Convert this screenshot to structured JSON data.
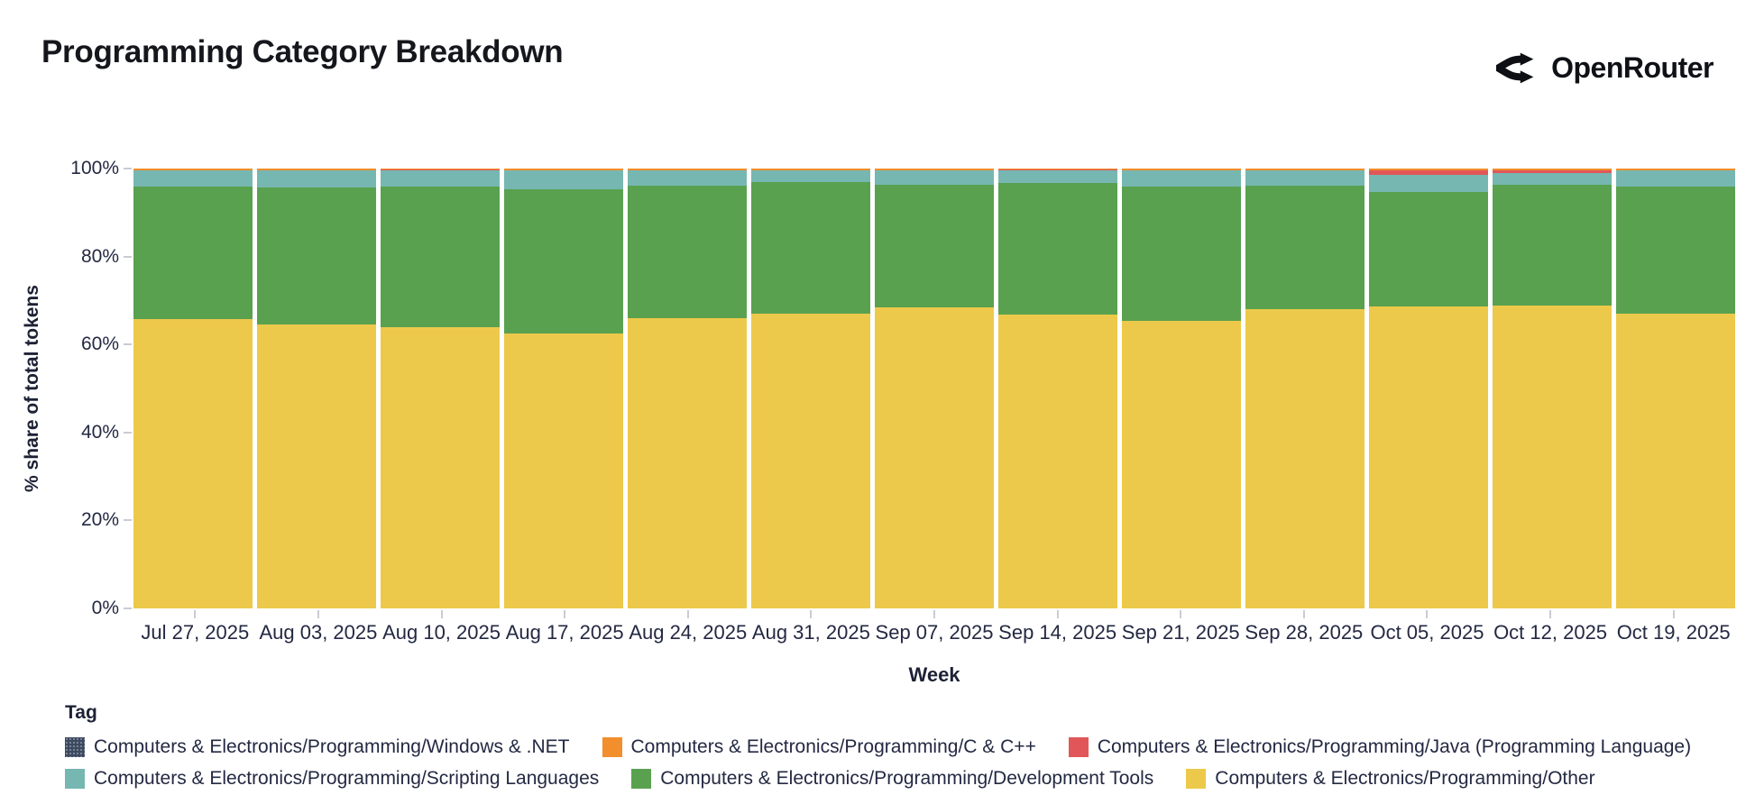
{
  "header": {
    "title": "Programming Category Breakdown",
    "brand": "OpenRouter"
  },
  "chart_data": {
    "type": "bar",
    "variant": "stacked-normalized",
    "title": "Programming Category Breakdown",
    "xlabel": "Week",
    "ylabel": "% share of total tokens",
    "ylim": [
      0,
      100
    ],
    "y_ticks": [
      {
        "value": 0,
        "label": "0%"
      },
      {
        "value": 20,
        "label": "20%"
      },
      {
        "value": 40,
        "label": "40%"
      },
      {
        "value": 60,
        "label": "60%"
      },
      {
        "value": 80,
        "label": "80%"
      },
      {
        "value": 100,
        "label": "100%"
      }
    ],
    "grid": false,
    "legend_position": "bottom",
    "categories": [
      "Jul 27, 2025",
      "Aug 03, 2025",
      "Aug 10, 2025",
      "Aug 17, 2025",
      "Aug 24, 2025",
      "Aug 31, 2025",
      "Sep 07, 2025",
      "Sep 14, 2025",
      "Sep 21, 2025",
      "Sep 28, 2025",
      "Oct 05, 2025",
      "Oct 12, 2025",
      "Oct 19, 2025"
    ],
    "stack_order": "bottom-to-top",
    "series": [
      {
        "key": "other",
        "name": "Computers & Electronics/Programming/Other",
        "color": "#EDC94B",
        "values": [
          65.8,
          64.6,
          64.0,
          62.5,
          65.9,
          67.1,
          68.5,
          66.9,
          65.4,
          68.1,
          68.7,
          68.9,
          67.1
        ]
      },
      {
        "key": "development-tools",
        "name": "Computers & Electronics/Programming/Development Tools",
        "color": "#59A14F",
        "values": [
          30.1,
          31.1,
          31.9,
          32.7,
          30.2,
          29.8,
          27.8,
          29.8,
          30.5,
          28.0,
          25.9,
          27.4,
          28.8
        ]
      },
      {
        "key": "scripting-languages",
        "name": "Computers & Electronics/Programming/Scripting Languages",
        "color": "#76B7B2",
        "values": [
          3.75,
          3.95,
          3.75,
          4.45,
          3.55,
          2.75,
          3.35,
          2.95,
          3.75,
          3.55,
          4.05,
          2.65,
          3.75
        ]
      },
      {
        "key": "java",
        "name": "Computers & Electronics/Programming/Java (Programming Language)",
        "color": "#E15759",
        "values": [
          0.05,
          0.05,
          0.05,
          0.05,
          0.05,
          0.05,
          0.05,
          0.05,
          0.05,
          0.05,
          1.0,
          0.7,
          0.05
        ]
      },
      {
        "key": "c-cpp",
        "name": "Computers & Electronics/Programming/C & C++",
        "color": "#F28E2B",
        "values": [
          0.25,
          0.25,
          0.25,
          0.25,
          0.25,
          0.25,
          0.25,
          0.25,
          0.25,
          0.25,
          0.3,
          0.3,
          0.25
        ]
      },
      {
        "key": "windows-net",
        "name": "Computers & Electronics/Programming/Windows & .NET",
        "color": "#3D4A5E",
        "values": [
          0.05,
          0.05,
          0.05,
          0.05,
          0.05,
          0.05,
          0.05,
          0.05,
          0.05,
          0.05,
          0.05,
          0.05,
          0.05
        ]
      }
    ]
  },
  "legend": {
    "title": "Tag",
    "rows": [
      [
        {
          "label": "Computers & Electronics/Programming/Windows & .NET",
          "color": "#3D4A5E",
          "textured": true,
          "key": "windows-net"
        },
        {
          "label": "Computers & Electronics/Programming/C & C++",
          "color": "#F28E2B",
          "textured": false,
          "key": "c-cpp"
        },
        {
          "label": "Computers & Electronics/Programming/Java (Programming Language)",
          "color": "#E15759",
          "textured": false,
          "key": "java"
        }
      ],
      [
        {
          "label": "Computers & Electronics/Programming/Scripting Languages",
          "color": "#76B7B2",
          "textured": false,
          "key": "scripting-languages"
        },
        {
          "label": "Computers & Electronics/Programming/Development Tools",
          "color": "#59A14F",
          "textured": false,
          "key": "development-tools"
        },
        {
          "label": "Computers & Electronics/Programming/Other",
          "color": "#EDC94B",
          "textured": false,
          "key": "other"
        }
      ]
    ]
  }
}
